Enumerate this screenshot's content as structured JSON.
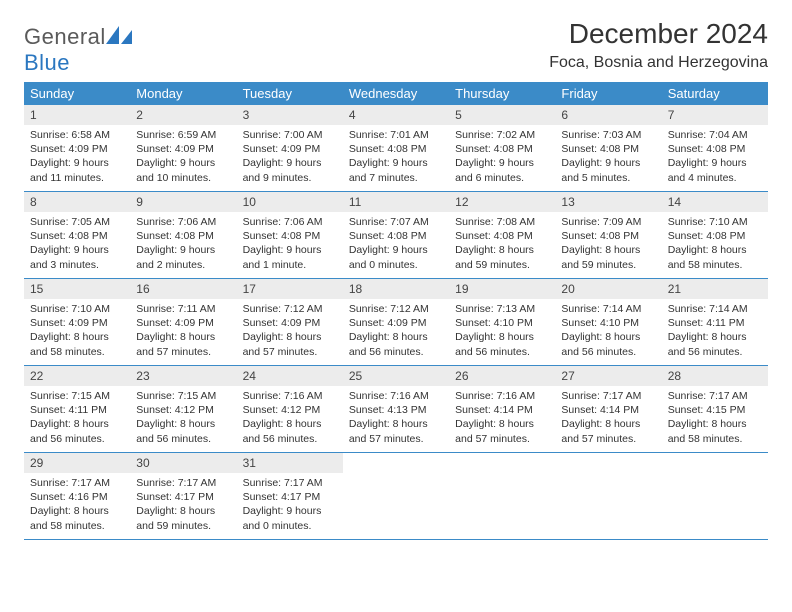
{
  "brand": {
    "name_part1": "General",
    "name_part2": "Blue"
  },
  "title": "December 2024",
  "location": "Foca, Bosnia and Herzegovina",
  "colors": {
    "header_bg": "#3b8bc8",
    "header_text": "#ffffff",
    "daynum_bg": "#ececec",
    "row_border": "#3b8bc8",
    "brand_blue": "#2b77c0",
    "text": "#333333"
  },
  "weekdays": [
    "Sunday",
    "Monday",
    "Tuesday",
    "Wednesday",
    "Thursday",
    "Friday",
    "Saturday"
  ],
  "weeks": [
    [
      {
        "n": "1",
        "sunrise": "6:58 AM",
        "sunset": "4:09 PM",
        "daylight": "9 hours and 11 minutes."
      },
      {
        "n": "2",
        "sunrise": "6:59 AM",
        "sunset": "4:09 PM",
        "daylight": "9 hours and 10 minutes."
      },
      {
        "n": "3",
        "sunrise": "7:00 AM",
        "sunset": "4:09 PM",
        "daylight": "9 hours and 9 minutes."
      },
      {
        "n": "4",
        "sunrise": "7:01 AM",
        "sunset": "4:08 PM",
        "daylight": "9 hours and 7 minutes."
      },
      {
        "n": "5",
        "sunrise": "7:02 AM",
        "sunset": "4:08 PM",
        "daylight": "9 hours and 6 minutes."
      },
      {
        "n": "6",
        "sunrise": "7:03 AM",
        "sunset": "4:08 PM",
        "daylight": "9 hours and 5 minutes."
      },
      {
        "n": "7",
        "sunrise": "7:04 AM",
        "sunset": "4:08 PM",
        "daylight": "9 hours and 4 minutes."
      }
    ],
    [
      {
        "n": "8",
        "sunrise": "7:05 AM",
        "sunset": "4:08 PM",
        "daylight": "9 hours and 3 minutes."
      },
      {
        "n": "9",
        "sunrise": "7:06 AM",
        "sunset": "4:08 PM",
        "daylight": "9 hours and 2 minutes."
      },
      {
        "n": "10",
        "sunrise": "7:06 AM",
        "sunset": "4:08 PM",
        "daylight": "9 hours and 1 minute."
      },
      {
        "n": "11",
        "sunrise": "7:07 AM",
        "sunset": "4:08 PM",
        "daylight": "9 hours and 0 minutes."
      },
      {
        "n": "12",
        "sunrise": "7:08 AM",
        "sunset": "4:08 PM",
        "daylight": "8 hours and 59 minutes."
      },
      {
        "n": "13",
        "sunrise": "7:09 AM",
        "sunset": "4:08 PM",
        "daylight": "8 hours and 59 minutes."
      },
      {
        "n": "14",
        "sunrise": "7:10 AM",
        "sunset": "4:08 PM",
        "daylight": "8 hours and 58 minutes."
      }
    ],
    [
      {
        "n": "15",
        "sunrise": "7:10 AM",
        "sunset": "4:09 PM",
        "daylight": "8 hours and 58 minutes."
      },
      {
        "n": "16",
        "sunrise": "7:11 AM",
        "sunset": "4:09 PM",
        "daylight": "8 hours and 57 minutes."
      },
      {
        "n": "17",
        "sunrise": "7:12 AM",
        "sunset": "4:09 PM",
        "daylight": "8 hours and 57 minutes."
      },
      {
        "n": "18",
        "sunrise": "7:12 AM",
        "sunset": "4:09 PM",
        "daylight": "8 hours and 56 minutes."
      },
      {
        "n": "19",
        "sunrise": "7:13 AM",
        "sunset": "4:10 PM",
        "daylight": "8 hours and 56 minutes."
      },
      {
        "n": "20",
        "sunrise": "7:14 AM",
        "sunset": "4:10 PM",
        "daylight": "8 hours and 56 minutes."
      },
      {
        "n": "21",
        "sunrise": "7:14 AM",
        "sunset": "4:11 PM",
        "daylight": "8 hours and 56 minutes."
      }
    ],
    [
      {
        "n": "22",
        "sunrise": "7:15 AM",
        "sunset": "4:11 PM",
        "daylight": "8 hours and 56 minutes."
      },
      {
        "n": "23",
        "sunrise": "7:15 AM",
        "sunset": "4:12 PM",
        "daylight": "8 hours and 56 minutes."
      },
      {
        "n": "24",
        "sunrise": "7:16 AM",
        "sunset": "4:12 PM",
        "daylight": "8 hours and 56 minutes."
      },
      {
        "n": "25",
        "sunrise": "7:16 AM",
        "sunset": "4:13 PM",
        "daylight": "8 hours and 57 minutes."
      },
      {
        "n": "26",
        "sunrise": "7:16 AM",
        "sunset": "4:14 PM",
        "daylight": "8 hours and 57 minutes."
      },
      {
        "n": "27",
        "sunrise": "7:17 AM",
        "sunset": "4:14 PM",
        "daylight": "8 hours and 57 minutes."
      },
      {
        "n": "28",
        "sunrise": "7:17 AM",
        "sunset": "4:15 PM",
        "daylight": "8 hours and 58 minutes."
      }
    ],
    [
      {
        "n": "29",
        "sunrise": "7:17 AM",
        "sunset": "4:16 PM",
        "daylight": "8 hours and 58 minutes."
      },
      {
        "n": "30",
        "sunrise": "7:17 AM",
        "sunset": "4:17 PM",
        "daylight": "8 hours and 59 minutes."
      },
      {
        "n": "31",
        "sunrise": "7:17 AM",
        "sunset": "4:17 PM",
        "daylight": "9 hours and 0 minutes."
      },
      null,
      null,
      null,
      null
    ]
  ],
  "labels": {
    "sunrise": "Sunrise:",
    "sunset": "Sunset:",
    "daylight": "Daylight:"
  }
}
